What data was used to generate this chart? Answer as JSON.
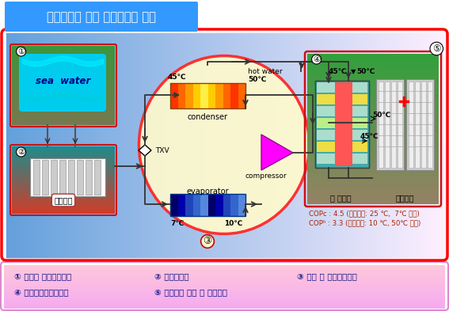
{
  "title": "해수온도차 이용 지역냉난방 기술",
  "title_bg": "#3399FF",
  "main_bg_left": "#6AB4E8",
  "main_bg_right": "#B8D8F0",
  "main_border": "#FF0000",
  "bottom_bg": "#F0C8E0",
  "bottom_border": "#DD88CC",
  "bottom_labels_row1": [
    "① 열원수 취수관련기술",
    "② 열교환기술",
    "③ 승온 및 효율향상기술"
  ],
  "bottom_labels_row2": [
    "④ 열부하변동대응기술",
    "⑤ 시스템의 운전 및 제어기술"
  ],
  "yellow_oval_color": "#FFFACD",
  "box1_bg_top": "#5CB85C",
  "box1_bg_bot": "#88CC44",
  "box2_bg_top": "#44AAAA",
  "box2_bg_bot": "#CC4444",
  "sea_color": "#00CCEE",
  "box4_bg": "#44AA44",
  "cop_text1": "COPᴄ : 4.5 (해수온도: 25 ℃,  7℃ 생산)",
  "cop_text2": "COPʰ : 3.3 (해수온도: 10 ℃, 50℃ 생산)"
}
